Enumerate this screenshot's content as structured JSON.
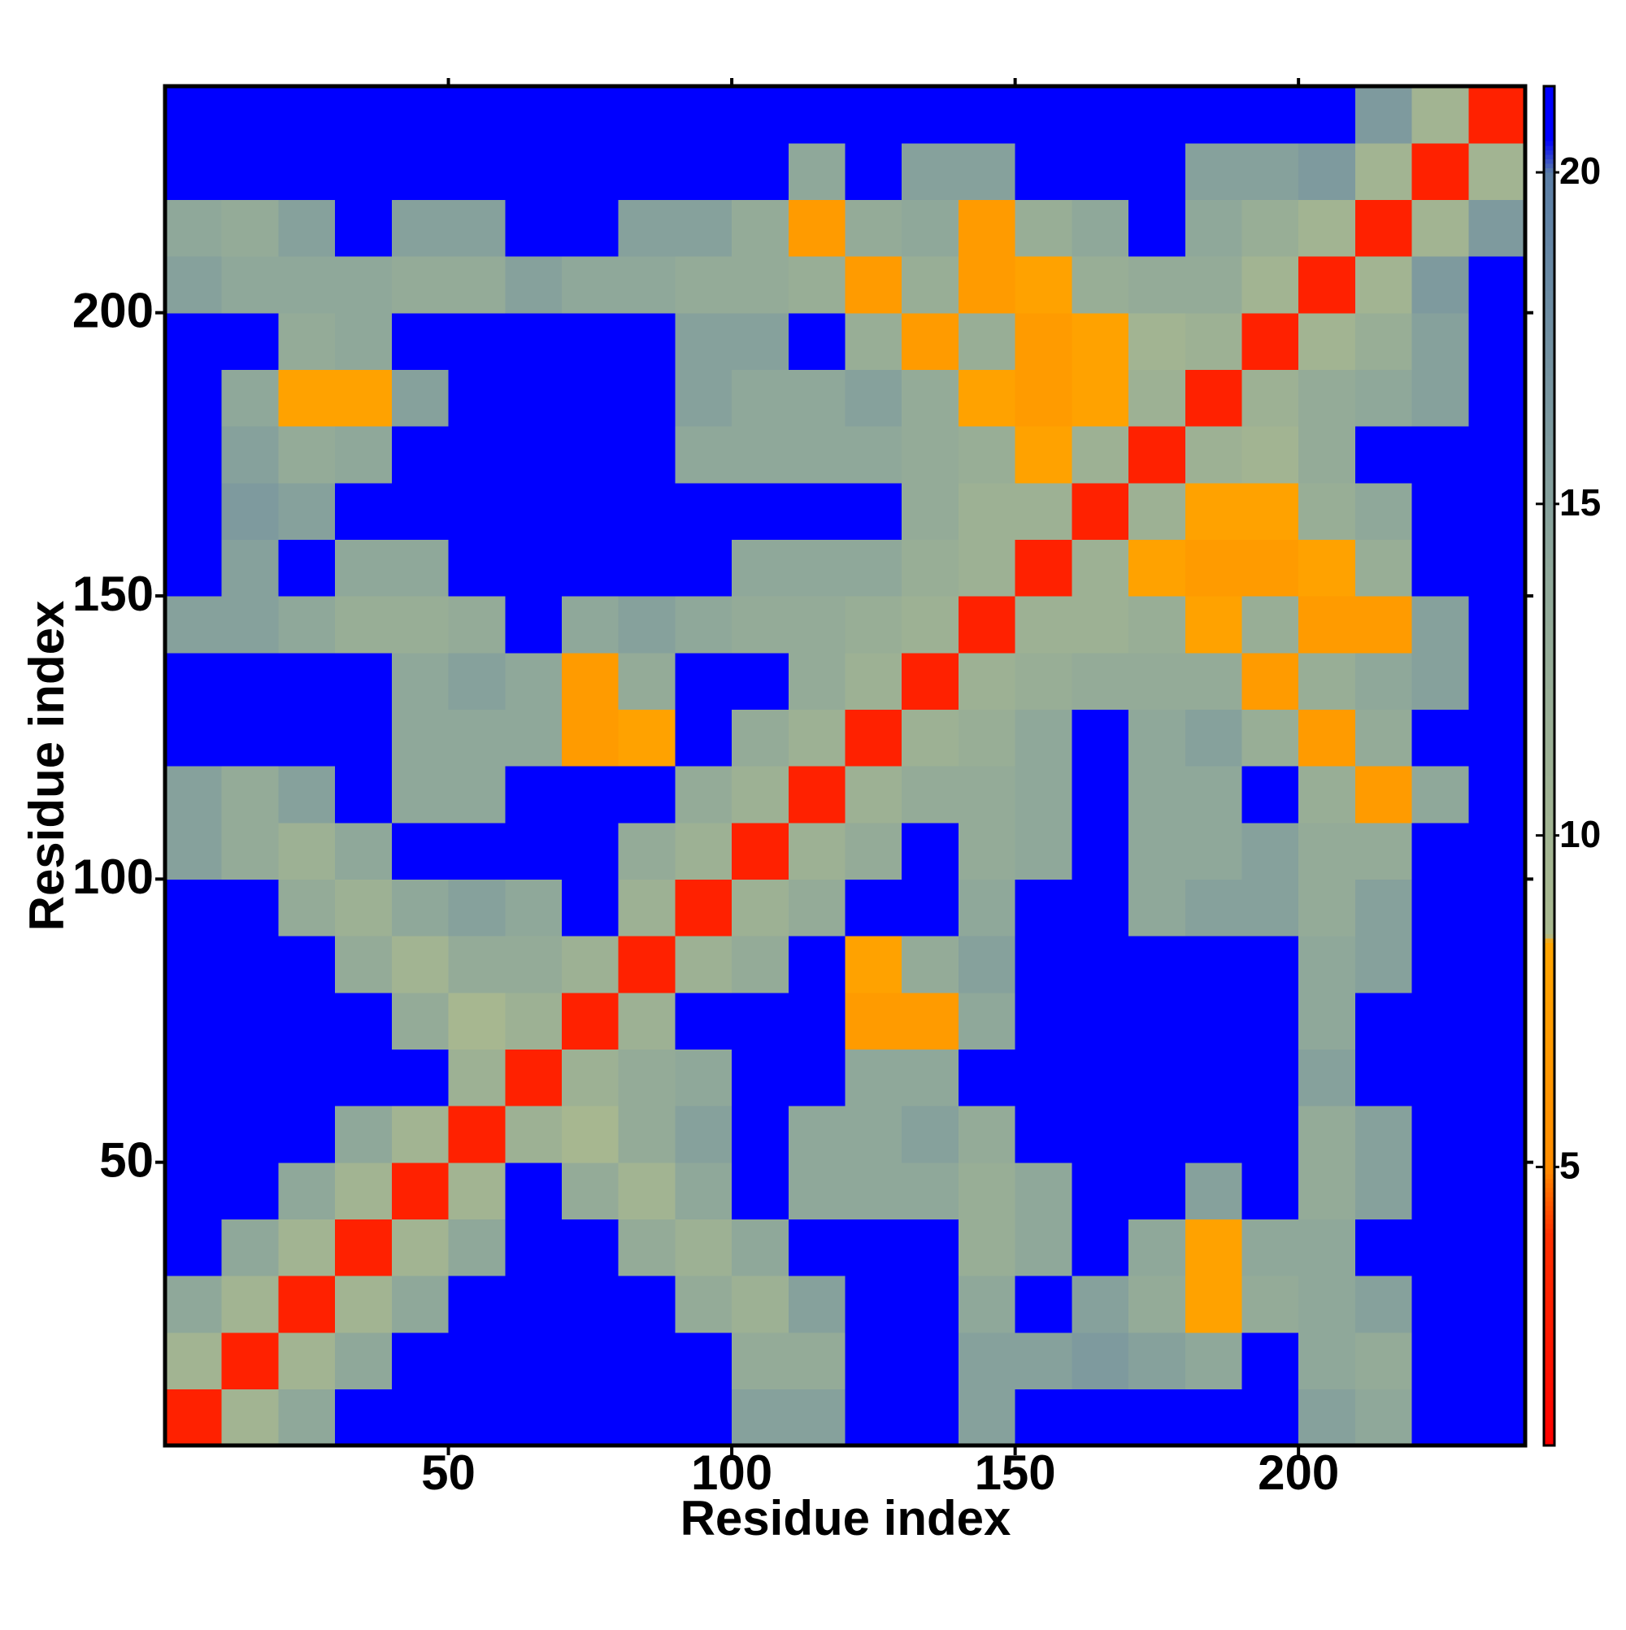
{
  "chart_data": {
    "type": "heatmap",
    "x_label": "Residue index",
    "y_label": "Residue index",
    "xlim": [
      0,
      240
    ],
    "ylim": [
      0,
      240
    ],
    "xticks": [
      50,
      100,
      150,
      200
    ],
    "yticks": [
      50,
      100,
      150,
      200
    ],
    "x": [
      5,
      15,
      25,
      35,
      45,
      55,
      65,
      75,
      85,
      95,
      105,
      115,
      125,
      135,
      145,
      155,
      165,
      175,
      185,
      195,
      205,
      215,
      225,
      235
    ],
    "y": [
      5,
      15,
      25,
      35,
      45,
      55,
      65,
      75,
      85,
      95,
      105,
      115,
      125,
      135,
      145,
      155,
      165,
      175,
      185,
      195,
      205,
      215,
      225,
      235
    ],
    "z": [
      [
        3,
        10,
        14,
        21,
        21,
        21,
        21,
        21,
        21,
        21,
        15,
        15,
        21,
        21,
        15,
        21,
        21,
        21,
        21,
        21,
        15,
        14,
        21,
        21
      ],
      [
        10,
        3,
        10,
        14,
        21,
        21,
        21,
        21,
        21,
        21,
        13,
        13,
        21,
        21,
        15,
        15,
        16,
        15,
        14,
        21,
        14,
        13,
        21,
        21
      ],
      [
        14,
        10,
        3,
        10,
        14,
        21,
        21,
        21,
        21,
        13,
        11,
        15,
        21,
        21,
        14,
        21,
        15,
        13,
        8,
        13,
        14,
        15,
        21,
        21
      ],
      [
        21,
        14,
        10,
        3,
        10,
        14,
        21,
        21,
        13,
        11,
        14,
        21,
        21,
        21,
        12,
        14,
        21,
        14,
        8,
        14,
        14,
        21,
        21,
        21
      ],
      [
        21,
        21,
        14,
        10,
        3,
        10,
        21,
        13,
        10,
        14,
        21,
        14,
        14,
        14,
        12,
        14,
        21,
        21,
        15,
        21,
        13,
        15,
        21,
        21
      ],
      [
        21,
        21,
        21,
        14,
        10,
        3,
        11,
        9,
        13,
        15,
        21,
        14,
        14,
        15,
        13,
        21,
        21,
        21,
        21,
        21,
        13,
        15,
        21,
        21
      ],
      [
        21,
        21,
        21,
        21,
        21,
        11,
        3,
        11,
        13,
        14,
        21,
        21,
        14,
        14,
        21,
        21,
        21,
        21,
        21,
        21,
        15,
        21,
        21,
        21
      ],
      [
        21,
        21,
        21,
        21,
        13,
        9,
        11,
        3,
        11,
        21,
        21,
        21,
        7,
        7,
        14,
        21,
        21,
        21,
        21,
        21,
        14,
        21,
        21,
        21
      ],
      [
        21,
        21,
        21,
        13,
        10,
        13,
        13,
        11,
        3,
        11,
        13,
        21,
        8,
        13,
        15,
        21,
        21,
        21,
        21,
        21,
        14,
        15,
        21,
        21
      ],
      [
        21,
        21,
        13,
        11,
        14,
        15,
        14,
        21,
        11,
        3,
        11,
        13,
        21,
        21,
        14,
        21,
        21,
        14,
        15,
        15,
        13,
        15,
        21,
        21
      ],
      [
        15,
        13,
        11,
        14,
        21,
        21,
        21,
        21,
        13,
        11,
        3,
        11,
        13,
        21,
        13,
        14,
        21,
        14,
        14,
        15,
        13,
        13,
        21,
        21
      ],
      [
        15,
        13,
        15,
        21,
        14,
        14,
        21,
        21,
        21,
        13,
        11,
        3,
        11,
        13,
        13,
        14,
        21,
        14,
        14,
        21,
        12,
        7,
        14,
        21
      ],
      [
        21,
        21,
        21,
        21,
        14,
        14,
        14,
        7,
        8,
        21,
        13,
        11,
        3,
        11,
        12,
        14,
        21,
        14,
        15,
        12,
        7,
        13,
        21,
        21
      ],
      [
        21,
        21,
        21,
        21,
        14,
        15,
        14,
        7,
        13,
        21,
        21,
        13,
        11,
        3,
        11,
        12,
        13,
        13,
        13,
        7,
        12,
        14,
        15,
        21
      ],
      [
        15,
        15,
        14,
        12,
        12,
        13,
        21,
        14,
        15,
        14,
        13,
        13,
        12,
        11,
        3,
        11,
        11,
        12,
        8,
        12,
        7,
        7,
        15,
        21
      ],
      [
        21,
        15,
        21,
        14,
        14,
        21,
        21,
        21,
        21,
        21,
        14,
        14,
        14,
        12,
        11,
        3,
        11,
        8,
        7,
        7,
        8,
        12,
        21,
        21
      ],
      [
        21,
        16,
        15,
        21,
        21,
        21,
        21,
        21,
        21,
        21,
        21,
        21,
        21,
        13,
        11,
        11,
        3,
        11,
        8,
        8,
        12,
        14,
        21,
        21
      ],
      [
        21,
        15,
        13,
        14,
        21,
        21,
        21,
        21,
        21,
        14,
        14,
        14,
        14,
        13,
        12,
        8,
        11,
        3,
        11,
        10,
        13,
        21,
        21,
        21
      ],
      [
        21,
        14,
        8,
        8,
        15,
        21,
        21,
        21,
        21,
        15,
        14,
        14,
        15,
        13,
        8,
        7,
        8,
        11,
        3,
        11,
        13,
        14,
        15,
        21
      ],
      [
        21,
        21,
        13,
        14,
        21,
        21,
        21,
        21,
        21,
        15,
        15,
        21,
        12,
        7,
        12,
        7,
        8,
        10,
        11,
        3,
        10,
        12,
        15,
        21
      ],
      [
        15,
        14,
        14,
        14,
        13,
        13,
        15,
        14,
        14,
        13,
        13,
        12,
        7,
        12,
        7,
        8,
        12,
        13,
        13,
        10,
        3,
        10,
        16,
        21
      ],
      [
        14,
        13,
        15,
        21,
        15,
        15,
        21,
        21,
        15,
        15,
        13,
        7,
        13,
        14,
        7,
        12,
        14,
        21,
        14,
        12,
        10,
        3,
        10,
        16
      ],
      [
        21,
        21,
        21,
        21,
        21,
        21,
        21,
        21,
        21,
        21,
        21,
        14,
        21,
        15,
        15,
        21,
        21,
        21,
        15,
        15,
        16,
        10,
        3,
        10
      ],
      [
        21,
        21,
        21,
        21,
        21,
        21,
        21,
        21,
        21,
        21,
        21,
        21,
        21,
        21,
        21,
        21,
        21,
        21,
        21,
        21,
        21,
        16,
        10,
        3
      ]
    ],
    "colorbar_lim": [
      0.8,
      21.3
    ],
    "colorbar_ticks": [
      5,
      10,
      15,
      20
    ],
    "colorscale": [
      [
        0.8,
        "#ff0000"
      ],
      [
        4,
        "#ff3000"
      ],
      [
        5,
        "#ff8c00"
      ],
      [
        8.4,
        "#ffa500"
      ],
      [
        8.5,
        "#a9b98f"
      ],
      [
        14,
        "#8fa89a"
      ],
      [
        20,
        "#5b7ea6"
      ],
      [
        20.5,
        "#0000ff"
      ],
      [
        21.3,
        "#0000ff"
      ]
    ]
  }
}
